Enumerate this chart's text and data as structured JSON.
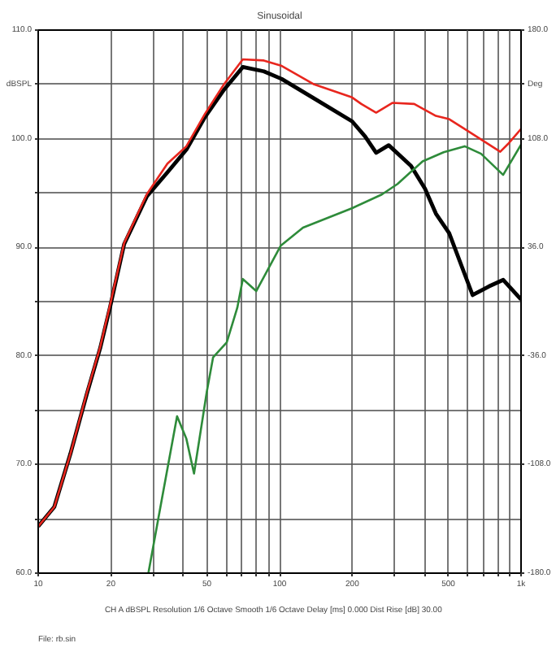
{
  "chart_data": {
    "type": "line",
    "title": "Sinusoidal",
    "log": "x",
    "grid": true,
    "xlim": [
      10,
      1000
    ],
    "ylim": [
      60,
      110
    ],
    "y2lim": [
      -180,
      180
    ],
    "xticks": [
      10,
      {
        "value": 20,
        "label": "20"
      },
      {
        "value": 30,
        "label": null
      },
      {
        "value": 40,
        "label": null
      },
      50,
      {
        "value": 60,
        "label": null
      },
      {
        "value": 70,
        "label": null
      },
      {
        "value": 80,
        "label": null
      },
      {
        "value": 90,
        "label": null
      },
      100,
      200,
      {
        "value": 300,
        "label": null
      },
      {
        "value": 400,
        "label": null
      },
      500,
      {
        "value": 600,
        "label": null
      },
      {
        "value": 700,
        "label": null
      },
      {
        "value": 800,
        "label": null
      },
      {
        "value": 900,
        "label": null
      },
      {
        "value": 1000,
        "label": "1k"
      }
    ],
    "yticks": [
      {
        "value": 60,
        "label": "60.0"
      },
      {
        "value": 65,
        "label": null
      },
      {
        "value": 70,
        "label": "70.0"
      },
      {
        "value": 75,
        "label": null
      },
      {
        "value": 80,
        "label": "80.0"
      },
      {
        "value": 85,
        "label": null
      },
      {
        "value": 90,
        "label": "90.0"
      },
      {
        "value": 95,
        "label": null
      },
      {
        "value": 100,
        "label": "100.0"
      },
      {
        "value": 105,
        "label": "dBSPL"
      },
      {
        "value": 110,
        "label": "110.0"
      }
    ],
    "y2ticks": [
      {
        "value": -180,
        "label": "-180.0"
      },
      {
        "value": -108,
        "label": "-108.0"
      },
      {
        "value": -36,
        "label": "-36.0"
      },
      {
        "value": 36,
        "label": "36.0"
      },
      {
        "value": 108,
        "label": "108.0"
      },
      {
        "value": 144,
        "label": "Deg"
      },
      {
        "value": 180,
        "label": "180.0"
      }
    ],
    "annotations": [
      "CH A  dBSPL  Resolution 1/6 Octave  Smooth 1/6 Octave  Delay [ms] 0.000  Dist Rise [dB] 30.00",
      "File: rb.sin"
    ],
    "series": [
      {
        "color": "#000000",
        "x": [
          10,
          11.66,
          13.6,
          15.9,
          18.05,
          19.8,
          22.7,
          28.2,
          34.3,
          41.1,
          49.1,
          58.8,
          70.4,
          86,
          102,
          139,
          199.6,
          226,
          251,
          283,
          350,
          400,
          444,
          504,
          630,
          736,
          844,
          1000
        ],
        "values": [
          64.3,
          66.1,
          71.0,
          76.5,
          80.7,
          84.4,
          90.3,
          94.7,
          96.9,
          99.0,
          102.0,
          104.5,
          106.6,
          106.2,
          105.5,
          103.7,
          101.6,
          100.2,
          98.7,
          99.4,
          97.5,
          95.4,
          93.1,
          91.3,
          85.6,
          86.4,
          87.0,
          85.2
        ]
      },
      {
        "color": "#e8261e",
        "x": [
          10,
          11.66,
          13.6,
          15.9,
          18.05,
          19.8,
          22.7,
          28.2,
          34.3,
          41.1,
          49.1,
          58.8,
          70.4,
          86,
          102,
          139,
          199.6,
          218,
          251,
          293,
          361,
          444,
          504,
          584,
          820,
          882,
          1000
        ],
        "values": [
          64.3,
          66.1,
          71.0,
          76.6,
          80.8,
          84.6,
          90.4,
          94.9,
          97.7,
          99.3,
          102.3,
          105.0,
          107.3,
          107.2,
          106.7,
          105.0,
          103.8,
          103.2,
          102.4,
          103.3,
          103.2,
          102.1,
          101.8,
          100.9,
          98.8,
          99.5,
          100.9
        ]
      },
      {
        "color": "#2e8b3a",
        "axis": "y2",
        "x": [
          28.6,
          32.6,
          37.6,
          41.1,
          44.2,
          49.9,
          53.0,
          60.4,
          66.8,
          70.4,
          80,
          101,
          125,
          200,
          265,
          308,
          391,
          478,
          584,
          683,
          843,
          1000
        ],
        "values": [
          -180,
          -130,
          -76,
          -91,
          -114,
          -60,
          -37,
          -27,
          -4,
          15,
          7,
          37,
          49,
          62,
          71,
          78,
          93,
          99,
          103,
          98,
          84,
          104
        ]
      }
    ]
  }
}
